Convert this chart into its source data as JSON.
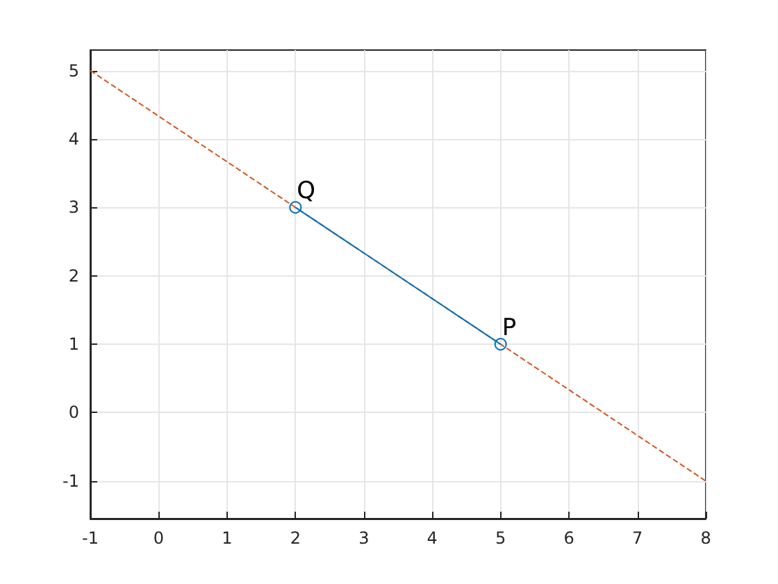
{
  "chart_data": {
    "type": "line",
    "xlim": [
      -1,
      8
    ],
    "ylim": [
      -1.55,
      5.3
    ],
    "xticks": [
      -1,
      0,
      1,
      2,
      3,
      4,
      5,
      6,
      7,
      8
    ],
    "yticks": [
      -1,
      0,
      1,
      2,
      3,
      4,
      5
    ],
    "grid": true,
    "series": [
      {
        "color": "#d95319",
        "x": [
          -1,
          8
        ],
        "values": [
          5,
          -1
        ],
        "line_style": "dashed",
        "marker": "none"
      },
      {
        "color": "#0072bd",
        "x": [
          2,
          5
        ],
        "values": [
          3,
          1
        ],
        "line_style": "solid",
        "marker": "circle"
      }
    ],
    "annotations": [
      {
        "text": "Q",
        "x": 2,
        "y": 3
      },
      {
        "text": "P",
        "x": 5,
        "y": 1
      }
    ]
  }
}
